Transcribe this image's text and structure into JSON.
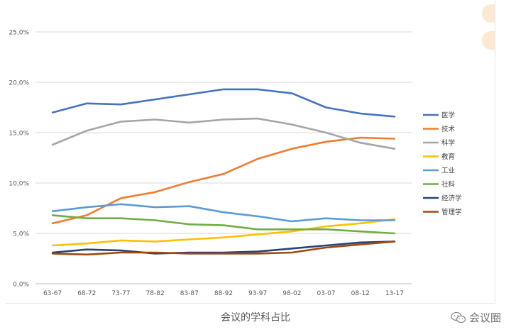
{
  "caption": "会议的学科占比",
  "watermark": {
    "text": "会议圈",
    "icon": "wechat-icon"
  },
  "chart_data": {
    "type": "line",
    "categories": [
      "63-67",
      "68-72",
      "73-77",
      "78-82",
      "83-87",
      "88-92",
      "93-97",
      "98-02",
      "03-07",
      "08-12",
      "13-17"
    ],
    "ylim": [
      0,
      25
    ],
    "yticks": [
      "0,0%",
      "5,0%",
      "10,0%",
      "15,0%",
      "20,0%",
      "25,0%"
    ],
    "grid": true,
    "legend_position": "right",
    "series": [
      {
        "name": "医学",
        "color": "#4472c4",
        "values": [
          17.0,
          17.9,
          17.8,
          18.3,
          18.8,
          19.3,
          19.3,
          18.9,
          17.5,
          16.9,
          16.6
        ]
      },
      {
        "name": "技术",
        "color": "#ed7d31",
        "values": [
          6.0,
          6.8,
          8.5,
          9.1,
          10.1,
          10.9,
          12.4,
          13.4,
          14.1,
          14.5,
          14.4
        ]
      },
      {
        "name": "科学",
        "color": "#a5a5a5",
        "values": [
          13.8,
          15.2,
          16.1,
          16.3,
          16.0,
          16.3,
          16.4,
          15.8,
          15.0,
          14.0,
          13.4
        ]
      },
      {
        "name": "教育",
        "color": "#ffc000",
        "values": [
          3.8,
          4.0,
          4.3,
          4.2,
          4.4,
          4.6,
          4.9,
          5.2,
          5.7,
          6.0,
          6.4
        ]
      },
      {
        "name": "工业",
        "color": "#5b9bd5",
        "values": [
          7.2,
          7.6,
          7.9,
          7.6,
          7.7,
          7.1,
          6.7,
          6.2,
          6.5,
          6.3,
          6.3
        ]
      },
      {
        "name": "社科",
        "color": "#70ad47",
        "values": [
          6.8,
          6.5,
          6.5,
          6.3,
          5.9,
          5.8,
          5.4,
          5.4,
          5.4,
          5.2,
          5.0
        ]
      },
      {
        "name": "经济学",
        "color": "#264478",
        "values": [
          3.1,
          3.4,
          3.3,
          3.0,
          3.1,
          3.1,
          3.2,
          3.5,
          3.8,
          4.1,
          4.2
        ]
      },
      {
        "name": "管理学",
        "color": "#9e480e",
        "values": [
          3.0,
          2.9,
          3.1,
          3.1,
          3.0,
          3.0,
          3.0,
          3.1,
          3.6,
          3.9,
          4.2
        ]
      }
    ]
  }
}
